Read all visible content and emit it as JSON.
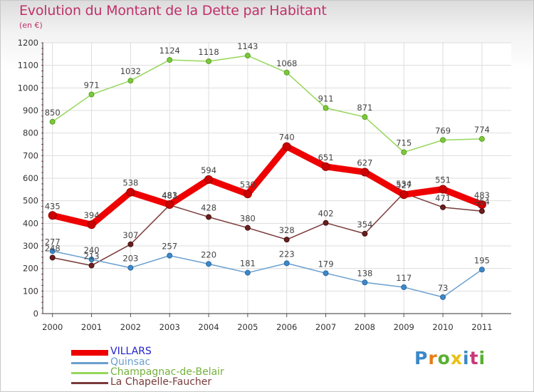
{
  "title": "Evolution du Montant de la Dette par Habitant",
  "unit": "(en €)",
  "logo": {
    "text": "Proxiti",
    "letter_colors": [
      "#3a88c8",
      "#e87c18",
      "#58b030",
      "#e8c010",
      "#3a88c8",
      "#c83878",
      "#58b030"
    ]
  },
  "chart_data": {
    "type": "line",
    "title": "Evolution du Montant de la Dette par Habitant",
    "ylabel": "(en €)",
    "xlabel": "",
    "x": [
      "2000",
      "2001",
      "2002",
      "2003",
      "2004",
      "2005",
      "2006",
      "2007",
      "2008",
      "2009",
      "2010",
      "2011"
    ],
    "ylim": [
      0,
      1200
    ],
    "yticks": [
      0,
      100,
      200,
      300,
      400,
      500,
      600,
      700,
      800,
      900,
      1000,
      1100,
      1200
    ],
    "grid": true,
    "legend": "bottom-left",
    "series": [
      {
        "name": "VILLARS",
        "values": [
          435,
          394,
          538,
          483,
          594,
          530,
          740,
          651,
          627,
          527,
          551,
          483
        ],
        "color": "#ee0000"
      },
      {
        "name": "Quinsac",
        "values": [
          277,
          240,
          203,
          257,
          220,
          181,
          223,
          179,
          138,
          117,
          73,
          195
        ],
        "color": "#6a9fcf"
      },
      {
        "name": "Champagnac-de-Belair",
        "values": [
          850,
          971,
          1032,
          1124,
          1118,
          1143,
          1068,
          911,
          871,
          715,
          769,
          774
        ],
        "color": "#96d65a"
      },
      {
        "name": "La Chapelle-Faucher",
        "values": [
          248,
          213,
          307,
          481,
          428,
          380,
          328,
          402,
          354,
          534,
          471,
          454
        ],
        "color": "#7a3a3a"
      }
    ]
  }
}
